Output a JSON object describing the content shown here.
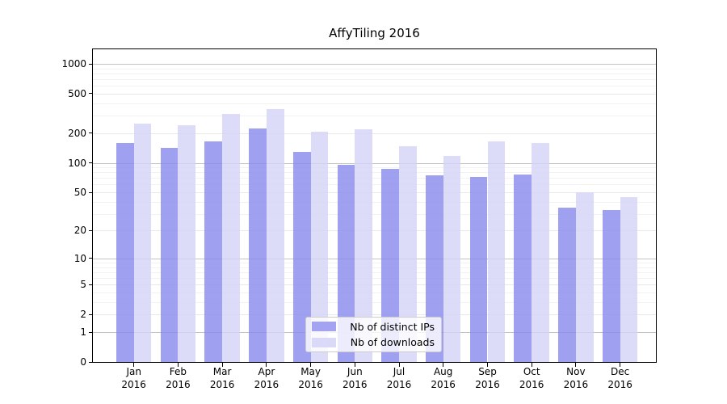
{
  "title": "AffyTiling 2016",
  "chart_data": {
    "type": "bar",
    "title": "AffyTiling 2016",
    "categories": [
      "Jan",
      "Feb",
      "Mar",
      "Apr",
      "May",
      "Jun",
      "Jul",
      "Aug",
      "Sep",
      "Oct",
      "Nov",
      "Dec"
    ],
    "category_year": "2016",
    "series": [
      {
        "name": "Nb of distinct IPs",
        "color": "#a3a3f1",
        "fill": "rgba(136,136,238,0.8)",
        "values": [
          160,
          143,
          165,
          225,
          128,
          96,
          87,
          74,
          72,
          76,
          35,
          33
        ]
      },
      {
        "name": "Nb of downloads",
        "color": "#dadaf8",
        "fill": "rgba(211,211,247,0.8)",
        "values": [
          250,
          240,
          310,
          350,
          207,
          218,
          148,
          118,
          166,
          160,
          50,
          45
        ]
      }
    ],
    "yscale": "log1p",
    "ylim": [
      0,
      1400
    ],
    "yticks": [
      1000,
      500,
      200,
      100,
      50,
      20,
      10,
      5,
      2,
      1,
      0
    ],
    "minor_gridlines": [
      3,
      4,
      6,
      7,
      8,
      9,
      30,
      40,
      60,
      70,
      80,
      90,
      300,
      400,
      600,
      700,
      800,
      900
    ],
    "grid": true,
    "legend_position": "lower center",
    "grid_color_major": "#c3c3c3",
    "grid_color_tick": "#e8e8e8",
    "grid_color_minor": "#f2f2f2"
  }
}
